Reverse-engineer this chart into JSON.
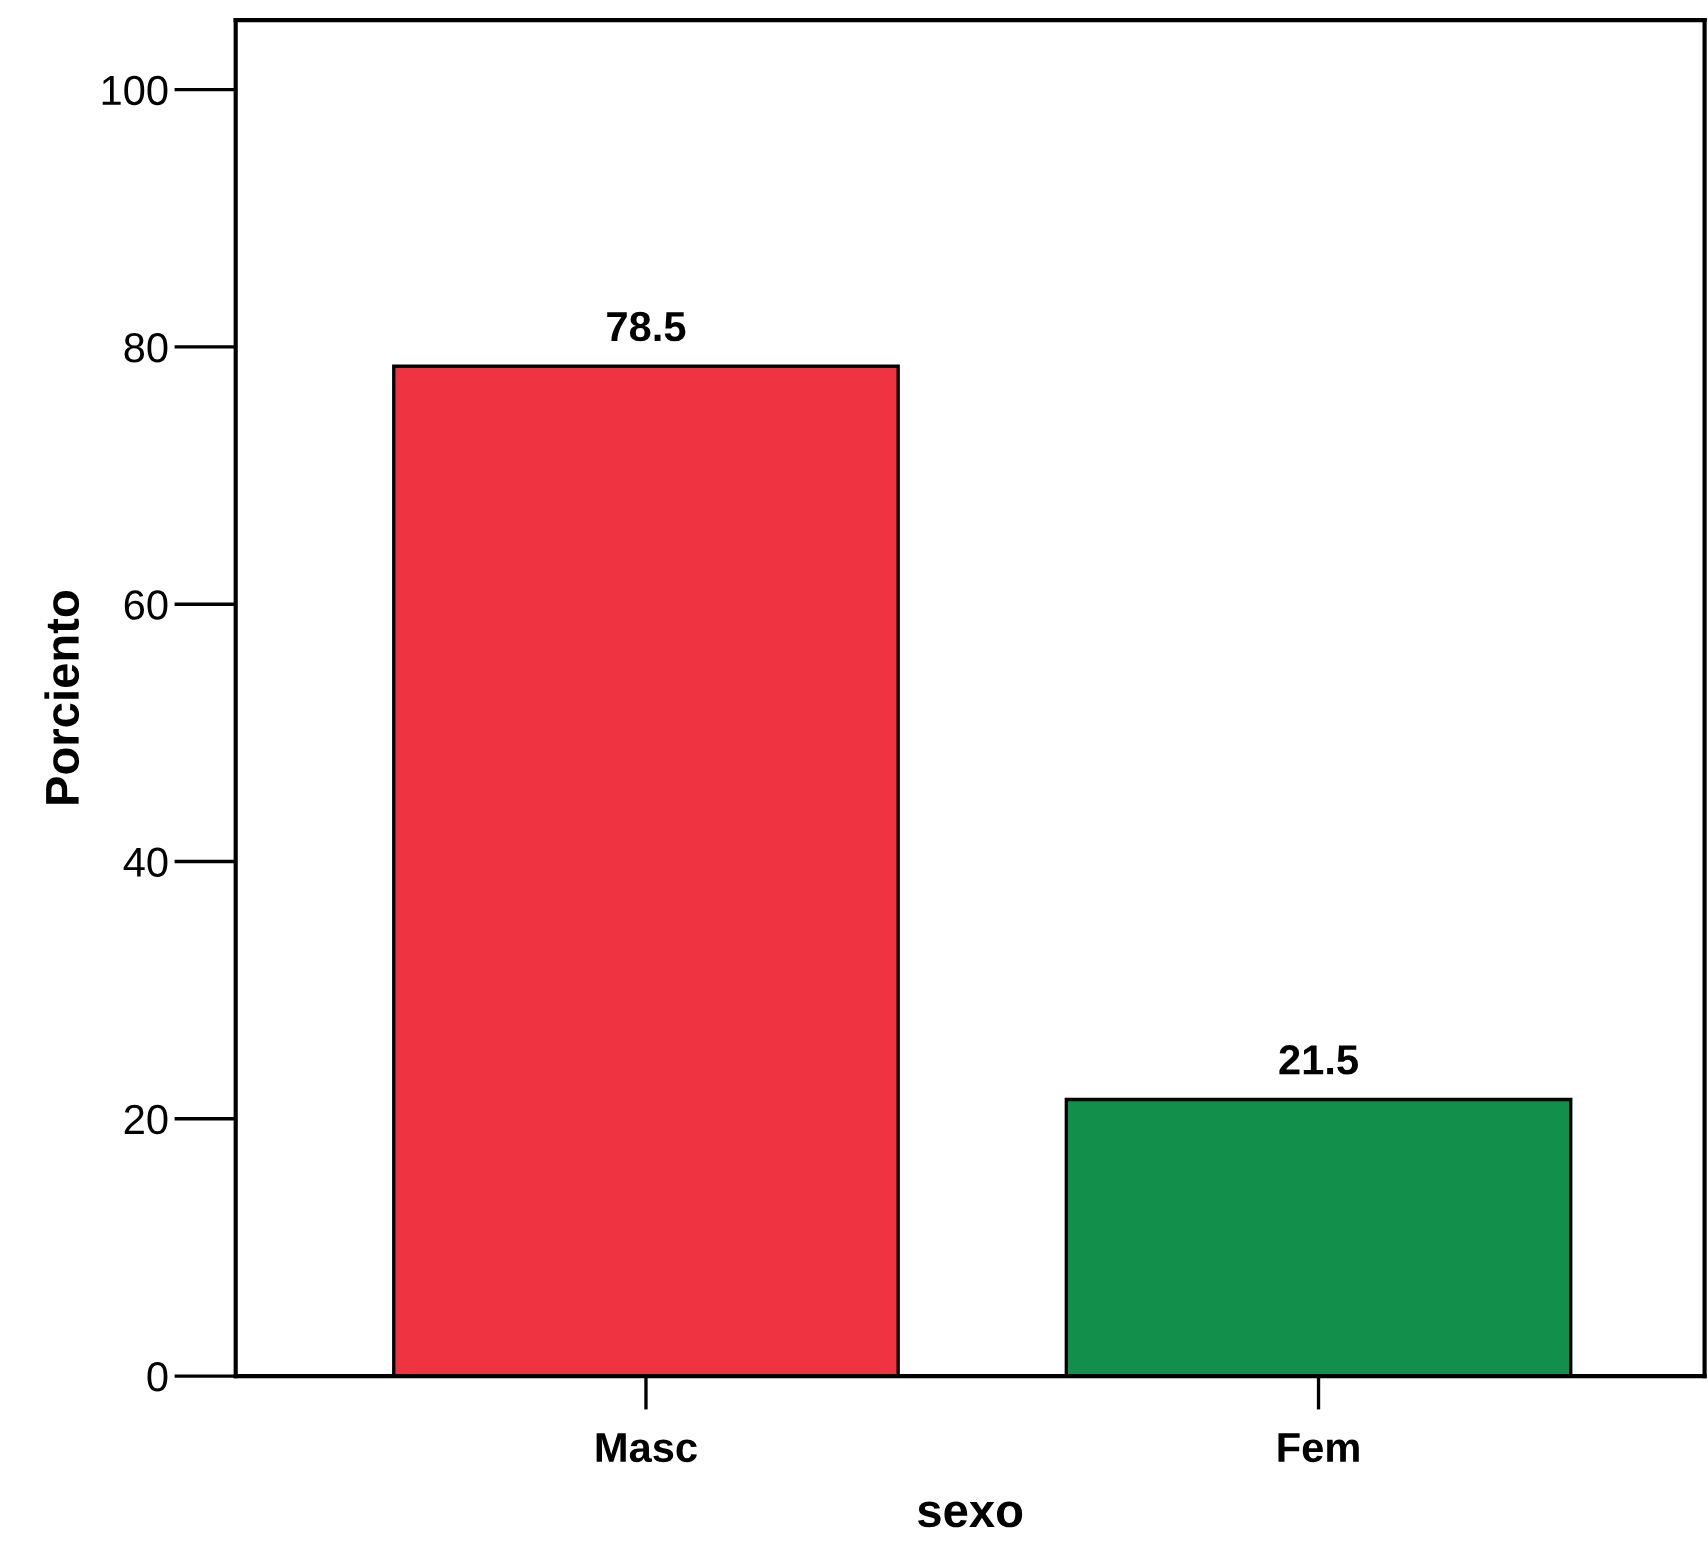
{
  "chart_data": {
    "type": "bar",
    "xlabel": "sexo",
    "ylabel": "Porciento",
    "categories": [
      "Masc",
      "Fem"
    ],
    "values": [
      78.5,
      21.5
    ],
    "colors": [
      "#ef3340",
      "#118f4b"
    ],
    "ylim": [
      0,
      105.4
    ],
    "yticks": [
      0,
      20,
      40,
      60,
      80,
      100
    ],
    "data_labels": true,
    "grid": false,
    "legend": false
  }
}
